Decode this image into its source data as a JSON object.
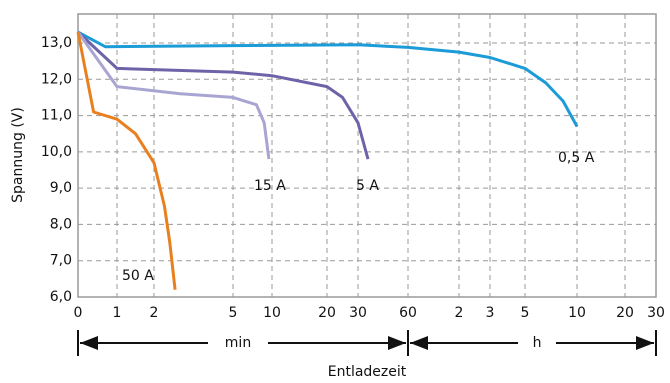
{
  "chart_data": {
    "type": "line",
    "x_label": "Entladezeit",
    "y_label": "Spannung (V)",
    "x_units": [
      "min",
      "h"
    ],
    "xlim": [
      0,
      1800
    ],
    "ylim": [
      6,
      13.8
    ],
    "xticks": [
      0,
      1,
      2,
      5,
      10,
      20,
      30,
      60,
      {
        "value": 120,
        "label": "2"
      },
      {
        "value": 180,
        "label": "3"
      },
      {
        "value": 300,
        "label": "5"
      },
      {
        "value": 600,
        "label": "10"
      },
      {
        "value": 1200,
        "label": "20"
      },
      {
        "value": 1800,
        "label": "30"
      }
    ],
    "yticks": [
      {
        "value": 6,
        "label": "6,0"
      },
      {
        "value": 7,
        "label": "7,0"
      },
      {
        "value": 8,
        "label": "8,0"
      },
      {
        "value": 9,
        "label": "9,0"
      },
      {
        "value": 10,
        "label": "10,0"
      },
      {
        "value": 11,
        "label": "11,0"
      },
      {
        "value": 12,
        "label": "12,0"
      },
      {
        "value": 13,
        "label": "13,0"
      }
    ],
    "grid": true,
    "series": [
      {
        "name": "0,5 A",
        "color": "#1b9bd7",
        "x": [
          0,
          0.7,
          5,
          30,
          60,
          120,
          180,
          300,
          420,
          520,
          600
        ],
        "values": [
          13.3,
          12.9,
          12.93,
          12.95,
          12.88,
          12.75,
          12.6,
          12.3,
          11.9,
          11.4,
          10.7
        ]
      },
      {
        "name": "5 A",
        "color": "#6d63a9",
        "x": [
          0,
          1,
          5,
          10,
          20,
          25,
          30,
          36
        ],
        "values": [
          13.3,
          12.3,
          12.2,
          12.1,
          11.8,
          11.5,
          10.8,
          9.8
        ]
      },
      {
        "name": "15 A",
        "color": "#a9a5d2",
        "x": [
          0,
          1,
          3,
          5,
          8,
          9,
          9.6
        ],
        "values": [
          13.3,
          11.8,
          11.6,
          11.5,
          11.3,
          10.8,
          9.8
        ]
      },
      {
        "name": "50 A",
        "color": "#e8801f",
        "x": [
          0,
          0.4,
          1,
          1.5,
          2,
          2.4,
          2.6,
          2.8
        ],
        "values": [
          13.3,
          11.1,
          10.9,
          10.5,
          9.7,
          8.5,
          7.5,
          6.2
        ]
      }
    ]
  }
}
